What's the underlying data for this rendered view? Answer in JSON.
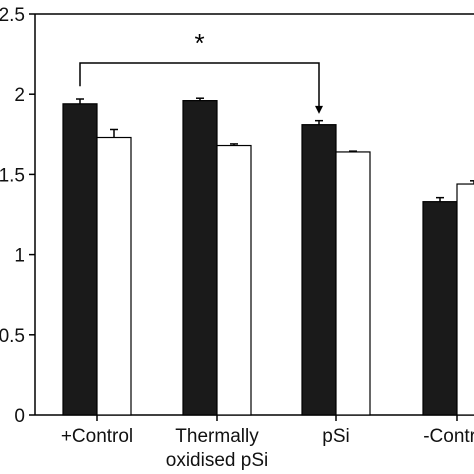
{
  "chart_data": {
    "type": "bar",
    "categories": [
      "+Control",
      "Thermally oxidised pSi",
      "pSi",
      "-Control"
    ],
    "category_labels": [
      [
        "+Control"
      ],
      [
        "Thermally",
        "oxidised pSi"
      ],
      [
        "pSi"
      ],
      [
        "-Control"
      ]
    ],
    "series": [
      {
        "color": "#1a1a1a",
        "values": [
          1.94,
          1.96,
          1.81,
          1.33
        ],
        "errors": [
          0.03,
          0.015,
          0.025,
          0.025
        ]
      },
      {
        "color": "#ffffff",
        "values": [
          1.73,
          1.68,
          1.64,
          1.44
        ],
        "errors": [
          0.05,
          0.01,
          0.005,
          0.02
        ]
      }
    ],
    "ylim": [
      0,
      2.5
    ],
    "y_ticks": [
      0,
      0.5,
      1,
      1.5,
      2,
      2.5
    ],
    "y_tick_labels": [
      "0",
      "0.5",
      "1",
      "1.5",
      "2",
      "2.5"
    ],
    "annotation": {
      "text": "*",
      "from": 0,
      "to": 2
    },
    "grid": false,
    "xlabel": "",
    "ylabel": ""
  }
}
